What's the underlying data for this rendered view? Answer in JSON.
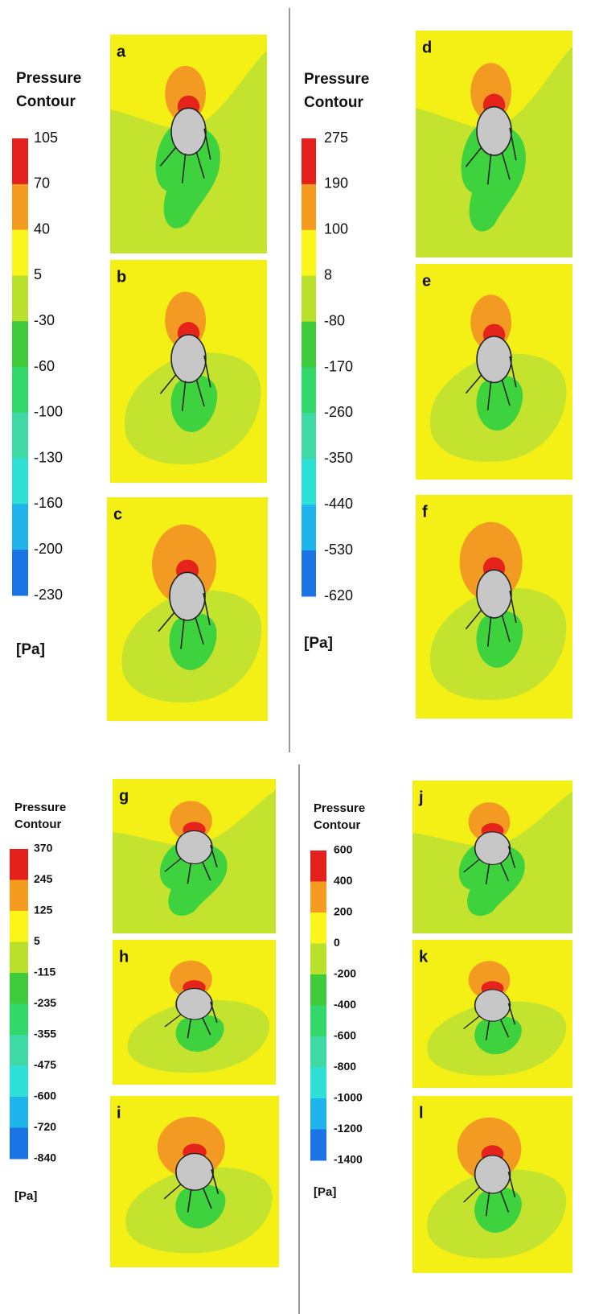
{
  "groups": [
    {
      "title_lines": [
        "Pressure",
        "Contour"
      ],
      "legend_labels": [
        "105",
        "70",
        "40",
        "5",
        "-30",
        "-60",
        "-100",
        "-130",
        "-160",
        "-200",
        "-230"
      ],
      "unit": "[Pa]",
      "panels": [
        "a",
        "b",
        "c"
      ]
    },
    {
      "title_lines": [
        "Pressure",
        "Contour"
      ],
      "legend_labels": [
        "275",
        "190",
        "100",
        "8",
        "-80",
        "-170",
        "-260",
        "-350",
        "-440",
        "-530",
        "-620"
      ],
      "unit": "[Pa]",
      "panels": [
        "d",
        "e",
        "f"
      ]
    },
    {
      "title_lines": [
        "Pressure",
        "Contour"
      ],
      "legend_labels": [
        "370",
        "245",
        "125",
        "5",
        "-115",
        "-235",
        "-355",
        "-475",
        "-600",
        "-720",
        "-840"
      ],
      "unit": "[Pa]",
      "panels": [
        "g",
        "h",
        "i"
      ]
    },
    {
      "title_lines": [
        "Pressure",
        "Contour"
      ],
      "legend_labels": [
        "600",
        "400",
        "200",
        "0",
        "-200",
        "-400",
        "-600",
        "-800",
        "-1000",
        "-1200",
        "-1400"
      ],
      "unit": "[Pa]",
      "panels": [
        "j",
        "k",
        "l"
      ]
    }
  ]
}
